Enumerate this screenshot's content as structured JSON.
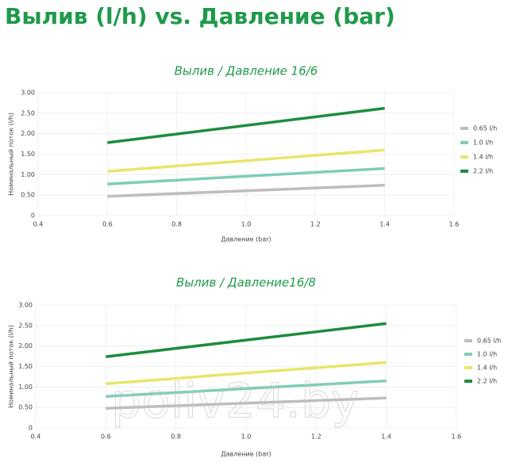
{
  "title": "Вылив (l/h) vs. Давление (bar)",
  "watermark": "poliv24.by",
  "chart_data": [
    {
      "type": "line",
      "title": "Вылив / Давление 16/6",
      "x_label": "Давление (bar)",
      "y_label": "Номинальный поток (l/h)",
      "x": [
        0.6,
        1.4
      ],
      "series": [
        {
          "name": "0.65 l/h",
          "color": "#bdbdbd",
          "values": [
            0.47,
            0.74
          ]
        },
        {
          "name": "1.0 l/h",
          "color": "#7fcdb8",
          "values": [
            0.77,
            1.15
          ]
        },
        {
          "name": "1.4 l/h",
          "color": "#e6e66a",
          "values": [
            1.08,
            1.6
          ]
        },
        {
          "name": "2.2 l/h",
          "color": "#1e8c3e",
          "values": [
            1.78,
            2.62
          ]
        }
      ],
      "xlim": [
        0.4,
        1.6
      ],
      "xticks": [
        0.4,
        0.6,
        0.8,
        {
          "value": 1,
          "label": "1.0"
        },
        1.2,
        1.4,
        1.6
      ],
      "ylim": [
        0,
        3
      ],
      "yticks": [
        0,
        {
          "value": 0.5,
          "label": "0.50"
        },
        {
          "value": 1,
          "label": "1.00"
        },
        {
          "value": 1.5,
          "label": "1.50"
        },
        {
          "value": 2,
          "label": "2.00"
        },
        {
          "value": 2.5,
          "label": "2.50"
        },
        {
          "value": 3,
          "label": "3.00"
        }
      ],
      "grid": true
    },
    {
      "type": "line",
      "title": "Вылив / Давление16/8",
      "x_label": "Давление (bar)",
      "y_label": "Номинальный поток (l/h)",
      "x": [
        0.6,
        1.4
      ],
      "series": [
        {
          "name": "0.65 l/h",
          "color": "#bdbdbd",
          "values": [
            0.48,
            0.73
          ]
        },
        {
          "name": "1.0 l/h",
          "color": "#7fcdb8",
          "values": [
            0.77,
            1.15
          ]
        },
        {
          "name": "1.4 l/h",
          "color": "#e6e66a",
          "values": [
            1.08,
            1.6
          ]
        },
        {
          "name": "2.2 l/h",
          "color": "#1e8c3e",
          "values": [
            1.74,
            2.55
          ]
        }
      ],
      "xlim": [
        0.4,
        1.6
      ],
      "xticks": [
        0.4,
        0.6,
        0.8,
        {
          "value": 1,
          "label": "1.0"
        },
        1.2,
        1.4,
        1.6
      ],
      "ylim": [
        0,
        3
      ],
      "yticks": [
        0,
        {
          "value": 0.5,
          "label": "0.50"
        },
        {
          "value": 1,
          "label": "1.00"
        },
        {
          "value": 1.5,
          "label": "1.50"
        },
        {
          "value": 2,
          "label": "2.00"
        },
        {
          "value": 2.5,
          "label": "2.50"
        },
        {
          "value": 3,
          "label": "3.00"
        }
      ],
      "grid": true
    }
  ]
}
